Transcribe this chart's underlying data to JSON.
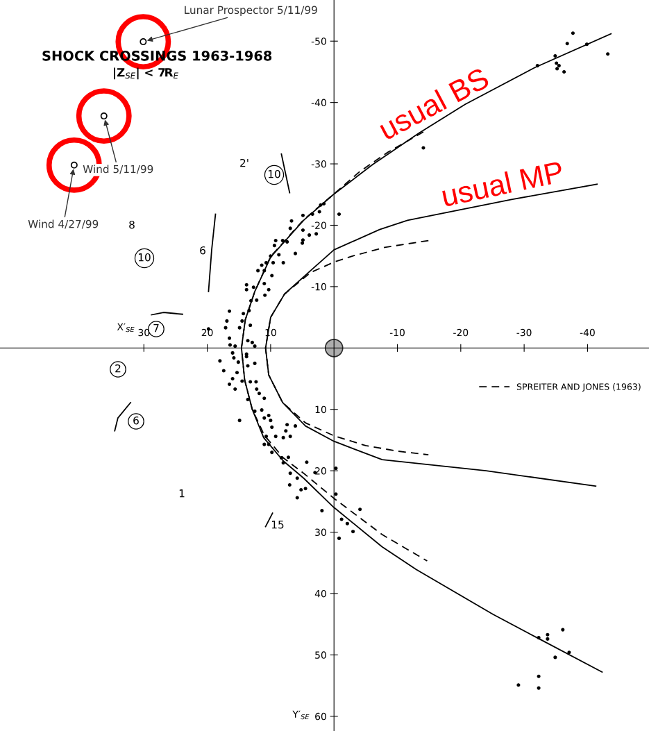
{
  "chart_data": {
    "type": "scatter",
    "title": "SHOCK CROSSINGS 1963-1968",
    "subtitle": "|Z$_{SE}$| < 7R$_{E}$",
    "xlabel": "X′$_{SE}$",
    "ylabel": "Y′$_{SE}$",
    "xlim": [
      52.7,
      -49.7
    ],
    "ylim": [
      62.4,
      -56.7
    ],
    "xticks": [
      30,
      20,
      10,
      -10,
      -20,
      -30,
      -40
    ],
    "yticks": [
      -50,
      -40,
      -30,
      -20,
      -10,
      10,
      20,
      30,
      40,
      50,
      60
    ],
    "legend": "right",
    "annotations": [
      "2'",
      "10",
      "8",
      "10",
      "6",
      "7",
      "2",
      "6",
      "1",
      "15",
      {
        "text": "Lunar Prospector 5/11/99",
        "x": 30.1,
        "y": -49.9
      },
      {
        "text": "Wind 5/11/99",
        "x": 36.3,
        "y": -37.8
      },
      {
        "text": "Wind 4/27/99",
        "x": 41.0,
        "y": -29.8
      }
    ],
    "series": [
      {
        "name": "usual BS",
        "type": "line",
        "color": "#000000",
        "line_style": "solid",
        "x": [
          -43.7,
          -31.7,
          -20.7,
          -13.4,
          -6.1,
          0.1,
          4.8,
          10,
          12.5,
          14,
          14.6,
          14.1,
          12.9,
          11.1,
          8,
          4.8,
          0.1,
          -7.6,
          -13,
          -25.1,
          -32.4,
          -42.3
        ],
        "values": [
          -51.2,
          -45.7,
          -39.7,
          -35,
          -29.9,
          -25,
          -20.8,
          -14.8,
          -9.2,
          -4.6,
          0,
          5.2,
          10,
          14.6,
          18.4,
          21.2,
          25.9,
          32.4,
          36.1,
          43.4,
          47.4,
          52.8
        ]
      },
      {
        "name": "usual MP",
        "type": "line",
        "color": "#000000",
        "line_style": "solid",
        "x": [
          -41.5,
          -28,
          -11.6,
          -7.2,
          0,
          3.7,
          7.8,
          10,
          10.8,
          10.3,
          8.1,
          4.5,
          0,
          -7.6,
          -24,
          -41.3
        ],
        "values": [
          -26.7,
          -24.2,
          -20.8,
          -19.3,
          -16,
          -12.6,
          -8.8,
          -5,
          0,
          4.4,
          8.9,
          12.7,
          15.2,
          18.2,
          20,
          22.5
        ]
      },
      {
        "name": "SPREITER AND JONES (1963)",
        "type": "line",
        "color": "#000000",
        "line_style": "dashed",
        "x": [
          -14.1,
          -8.5,
          -4,
          0,
          4.8,
          10,
          12.5,
          14,
          14.6,
          14.1,
          12.9,
          11,
          8,
          4.8,
          0,
          -7.6,
          -14.7,
          null,
          -14.9,
          -8,
          -3,
          0,
          3.7,
          7.8,
          10,
          10.8,
          10.3,
          8.1,
          4.5,
          0,
          -5,
          -10,
          -14.9
        ],
        "values": [
          -35.2,
          -31.9,
          -28.7,
          -25.1,
          -20.9,
          -14.9,
          -9.2,
          -4.6,
          0,
          5.2,
          10,
          14.2,
          17.9,
          20.4,
          24.5,
          30.4,
          34.7,
          null,
          -17.5,
          -16.4,
          -15,
          -14,
          -12.3,
          -8.8,
          -5,
          0,
          4.4,
          8.9,
          12.2,
          14.3,
          15.9,
          16.8,
          17.4
        ]
      },
      {
        "color": "#000000",
        "marker": "circle",
        "x": [
          -0.8,
          6.7,
          4.9,
          3.4,
          2.1,
          1.6,
          2.3,
          6.9,
          4.9,
          5.0,
          3.9,
          2.8,
          4.9,
          9.2,
          8.1,
          9.4,
          7.4,
          6.1,
          10.0,
          8.7,
          11.4,
          10.7,
          9.6,
          8.0,
          12.0,
          11.0,
          9.8,
          13.8,
          12.7,
          13.8,
          11.0,
          10.3,
          10.9,
          12.2,
          13.1,
          13.4,
          14.3,
          14.5,
          16.5,
          16.9,
          17.1,
          19.8,
          16.5,
          14.9,
          13.2,
          16.4,
          15.6,
          13.6,
          12.9,
          12.5,
          18.0,
          17.4,
          16.0,
          15.8,
          15.1,
          15.3,
          13.8,
          13.8,
          13.6,
          12.5,
          16.0,
          16.5,
          14.5,
          15.6,
          13.2,
          12.3,
          13.6,
          12.2,
          11.8,
          11.0,
          12.5,
          11.4,
          14.9,
          11.0,
          10.3,
          10.0,
          9.8,
          9.2,
          10.7,
          10.3,
          11.0,
          7.4,
          6.1,
          7.6,
          6.9,
          8.0,
          9.8,
          8.3,
          8.0,
          7.2,
          6.9,
          7.0,
          5.8,
          5.8,
          5.2,
          4.5,
          4.3,
          3.0,
          1.9,
          -0.3,
          -0.3,
          -1.2,
          -2.1,
          -3.0,
          -4.1,
          -0.8,
          -37.7,
          -36.8,
          -34.9,
          -35.1,
          -35.5,
          -35.2,
          -36.3,
          -43.2,
          -39.9,
          -32.1,
          -14.1,
          -36.1,
          -33.7,
          -33.7,
          -32.3,
          -37.1,
          -34.9,
          -32.3,
          -29.1,
          -32.3
        ],
        "values": [
          -21.8,
          -20.7,
          -21.6,
          -21.8,
          -23.3,
          -23.5,
          -22.2,
          -19.5,
          -17.6,
          -17.1,
          -18.4,
          -18.6,
          -19.2,
          -17.5,
          -17.5,
          -16.7,
          -17.3,
          -15.4,
          -15.0,
          -15.2,
          -13.5,
          -13.9,
          -13.9,
          -13.9,
          -12.6,
          -12.6,
          -11.8,
          -10.3,
          -9.9,
          -9.5,
          -10.5,
          -9.5,
          -8.6,
          -7.8,
          -7.7,
          -6.1,
          -5.6,
          -4.4,
          -6.0,
          -4.4,
          -3.3,
          -3.1,
          -1.6,
          -3.3,
          -3.7,
          -0.5,
          -0.3,
          -1.2,
          -0.9,
          -0.3,
          2.1,
          3.7,
          0.8,
          1.6,
          2.3,
          4.0,
          1.0,
          1.4,
          2.9,
          2.5,
          5.0,
          5.9,
          5.4,
          6.7,
          5.5,
          5.5,
          8.4,
          6.7,
          7.4,
          8.2,
          10.3,
          10.1,
          11.8,
          11.4,
          11.0,
          11.8,
          12.9,
          14.4,
          14.4,
          15.7,
          15.7,
          12.5,
          12.7,
          13.5,
          14.4,
          14.6,
          17.0,
          17.9,
          18.7,
          17.8,
          20.4,
          22.3,
          21.2,
          24.4,
          23.1,
          22.9,
          18.6,
          20.3,
          26.5,
          19.6,
          23.8,
          27.9,
          28.6,
          29.9,
          26.3,
          31.0,
          -51.3,
          -49.6,
          -47.6,
          -46.4,
          -46.0,
          -45.5,
          -45.0,
          -47.9,
          -49.5,
          -46.0,
          -32.6,
          45.9,
          46.7,
          47.4,
          47.2,
          49.6,
          50.4,
          53.5,
          54.9,
          55.4
        ]
      },
      {
        "type": "line",
        "color": "#000000",
        "x": [
          8.3,
          7.0
        ],
        "values": [
          -31.6,
          -25.3
        ]
      },
      {
        "type": "line",
        "color": "#000000",
        "x": [
          18.7,
          19.3,
          19.8
        ],
        "values": [
          -21.8,
          -16,
          -9.2
        ]
      },
      {
        "type": "line",
        "color": "#000000",
        "x": [
          28.8,
          26.9,
          23.9
        ],
        "values": [
          -5.4,
          -5.8,
          -5.5
        ]
      },
      {
        "type": "line",
        "color": "#000000",
        "x": [
          34.6,
          34.1,
          32.1
        ],
        "values": [
          13.5,
          11.4,
          8.9
        ]
      },
      {
        "type": "line",
        "color": "#000000",
        "x": [
          10.8,
          9.7
        ],
        "values": [
          29.1,
          26.9
        ]
      }
    ]
  }
}
